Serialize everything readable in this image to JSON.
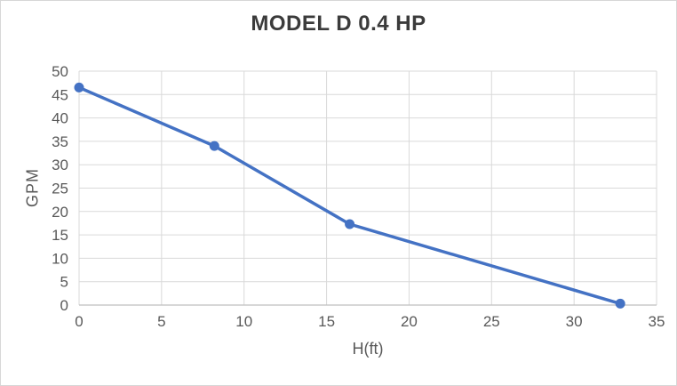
{
  "chart_data": {
    "type": "line",
    "title": "MODEL D 0.4 HP",
    "xlabel": "H(ft)",
    "ylabel": "GPM",
    "xlim": [
      0,
      35
    ],
    "ylim": [
      0,
      50
    ],
    "x_ticks": [
      0,
      5,
      10,
      15,
      20,
      25,
      30,
      35
    ],
    "y_ticks": [
      0,
      5,
      10,
      15,
      20,
      25,
      30,
      35,
      40,
      45,
      50
    ],
    "grid": true,
    "legend": "none",
    "series": [
      {
        "name": "MODEL D 0.4 HP",
        "x": [
          0,
          8.2,
          16.4,
          32.8
        ],
        "y": [
          46.5,
          34,
          17.3,
          0.3
        ],
        "color": "#4472C4",
        "marker": "circle"
      }
    ],
    "colors": {
      "line": "#4472C4",
      "gridline": "#D9D9D9",
      "axis_line": "#BFBFBF",
      "tick_text": "#595959",
      "title_text": "#3B3B3B",
      "background": "#FFFFFF",
      "border": "#D7D7D7"
    }
  }
}
